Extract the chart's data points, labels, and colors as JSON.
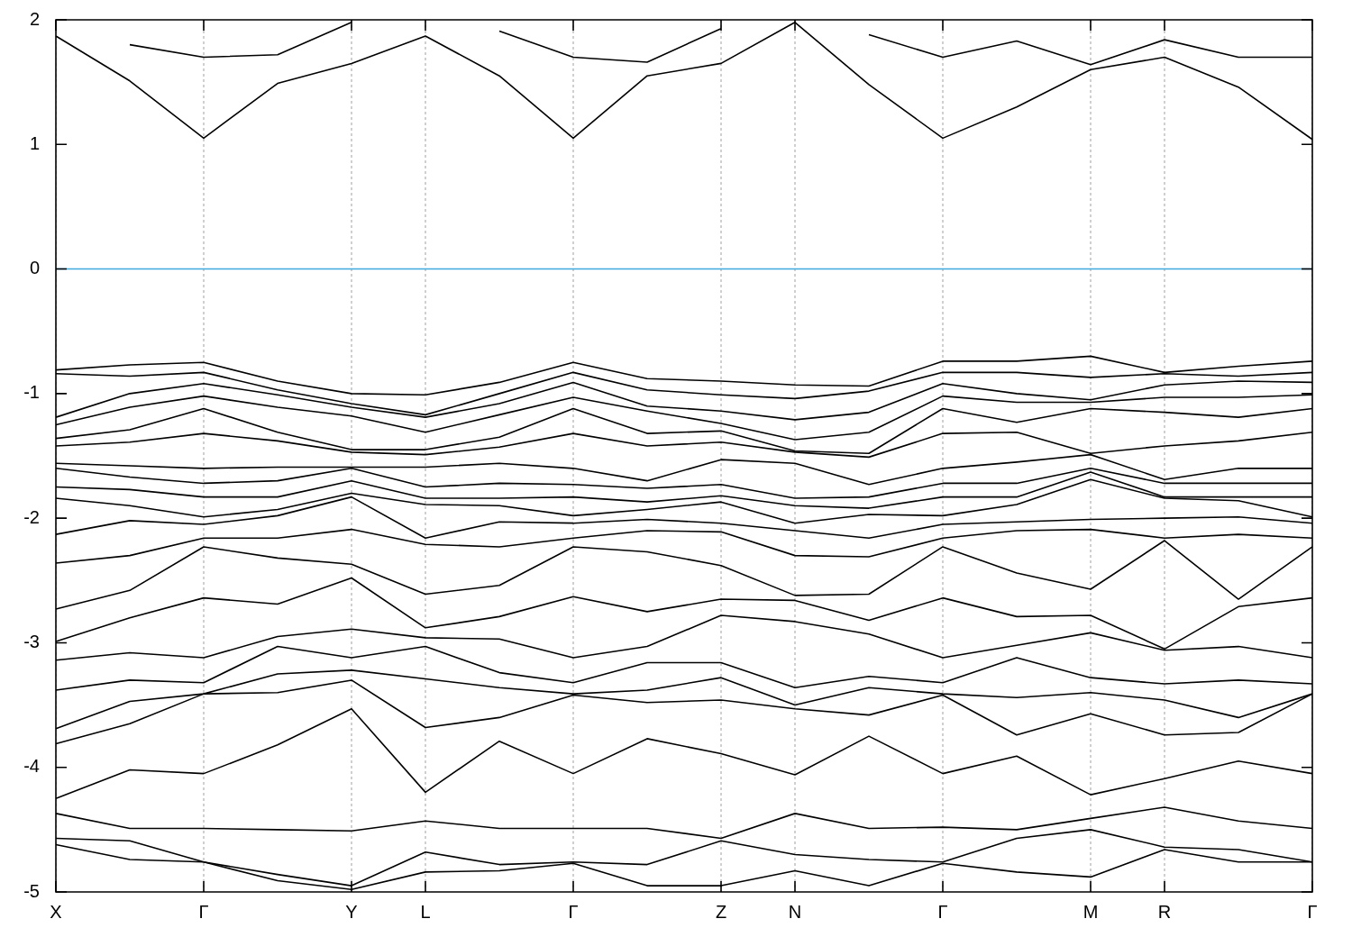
{
  "chart_data": {
    "type": "line",
    "categories": [
      "X",
      null,
      "Γ",
      null,
      "Y",
      "L",
      null,
      "Γ",
      null,
      "Z",
      "N",
      null,
      "Γ",
      null,
      "M",
      "R",
      null,
      "Γ"
    ],
    "ylim": [
      -5,
      2
    ],
    "yticks": [
      -5,
      -4,
      -3,
      -2,
      -1,
      0,
      1,
      2
    ],
    "grid": "x",
    "legend": false,
    "ref_lines": [
      {
        "axis": "y",
        "value": 0,
        "color": "#3fa9dd"
      }
    ],
    "series": [
      {
        "color": "#000000",
        "values": [
          null,
          1.8,
          1.7,
          1.72,
          1.98,
          null,
          1.91,
          1.7,
          1.66,
          1.93,
          null,
          1.88,
          1.7,
          1.83,
          1.64,
          1.84,
          1.7,
          1.7
        ]
      },
      {
        "color": "#000000",
        "values": [
          1.87,
          1.51,
          1.05,
          1.49,
          1.65,
          1.87,
          1.55,
          1.05,
          1.55,
          1.65,
          1.98,
          1.48,
          1.05,
          1.3,
          1.6,
          1.7,
          1.46,
          1.04
        ]
      },
      {
        "color": "#000000",
        "values": [
          -0.81,
          -0.77,
          -0.75,
          -0.9,
          -1.0,
          -1.01,
          -0.91,
          -0.75,
          -0.88,
          -0.9,
          -0.93,
          -0.94,
          -0.74,
          -0.74,
          -0.7,
          -0.83,
          -0.78,
          -0.74
        ]
      },
      {
        "color": "#000000",
        "values": [
          -0.84,
          -0.86,
          -0.83,
          -0.97,
          -1.08,
          -1.17,
          -1.0,
          -0.83,
          -0.97,
          -1.01,
          -1.04,
          -0.98,
          -0.83,
          -0.83,
          -0.87,
          -0.84,
          -0.86,
          -0.83
        ]
      },
      {
        "color": "#000000",
        "values": [
          -1.19,
          -1.0,
          -0.92,
          -1.01,
          -1.11,
          -1.19,
          -1.08,
          -0.91,
          -1.1,
          -1.14,
          -1.21,
          -1.15,
          -0.92,
          -1.0,
          -1.05,
          -0.93,
          -0.9,
          -0.91
        ]
      },
      {
        "color": "#000000",
        "values": [
          -1.25,
          -1.11,
          -1.02,
          -1.11,
          -1.18,
          -1.31,
          -1.17,
          -1.03,
          -1.14,
          -1.24,
          -1.37,
          -1.31,
          -1.02,
          -1.07,
          -1.07,
          -1.03,
          -1.03,
          -1.01
        ]
      },
      {
        "color": "#000000",
        "values": [
          -1.36,
          -1.29,
          -1.12,
          -1.31,
          -1.45,
          -1.45,
          -1.35,
          -1.12,
          -1.32,
          -1.3,
          -1.46,
          -1.48,
          -1.12,
          -1.23,
          -1.12,
          -1.15,
          -1.19,
          -1.12
        ]
      },
      {
        "color": "#000000",
        "values": [
          -1.42,
          -1.39,
          -1.32,
          -1.38,
          -1.47,
          -1.49,
          -1.43,
          -1.32,
          -1.42,
          -1.39,
          -1.47,
          -1.51,
          -1.32,
          -1.31,
          -1.48,
          -1.42,
          -1.38,
          -1.31
        ]
      },
      {
        "color": "#000000",
        "values": [
          -1.56,
          -1.58,
          -1.6,
          -1.59,
          -1.59,
          -1.59,
          -1.56,
          -1.6,
          -1.7,
          -1.53,
          -1.56,
          -1.73,
          -1.6,
          -1.55,
          -1.49,
          -1.69,
          -1.6,
          -1.6
        ]
      },
      {
        "color": "#000000",
        "values": [
          -1.6,
          -1.67,
          -1.72,
          -1.7,
          -1.6,
          -1.75,
          -1.72,
          -1.73,
          -1.76,
          -1.73,
          -1.84,
          -1.83,
          -1.72,
          -1.72,
          -1.6,
          -1.72,
          -1.72,
          -1.72
        ]
      },
      {
        "color": "#000000",
        "values": [
          -1.75,
          -1.77,
          -1.83,
          -1.83,
          -1.7,
          -1.84,
          -1.84,
          -1.83,
          -1.87,
          -1.82,
          -1.9,
          -1.92,
          -1.83,
          -1.83,
          -1.63,
          -1.83,
          -1.83,
          -1.83
        ]
      },
      {
        "color": "#000000",
        "values": [
          -1.84,
          -1.9,
          -1.99,
          -1.93,
          -1.8,
          -1.89,
          -1.9,
          -1.98,
          -1.93,
          -1.87,
          -2.04,
          -1.97,
          -1.98,
          -1.89,
          -1.69,
          -1.84,
          -1.86,
          -1.99
        ]
      },
      {
        "color": "#000000",
        "values": [
          -2.13,
          -2.02,
          -2.05,
          -1.98,
          -1.83,
          -2.16,
          -2.03,
          -2.04,
          -2.01,
          -2.04,
          -2.1,
          -2.16,
          -2.05,
          -2.03,
          -2.01,
          -2.0,
          -1.99,
          -2.04
        ]
      },
      {
        "color": "#000000",
        "values": [
          -2.36,
          -2.3,
          -2.16,
          -2.16,
          -2.09,
          -2.21,
          -2.23,
          -2.16,
          -2.1,
          -2.11,
          -2.3,
          -2.31,
          -2.16,
          -2.1,
          -2.09,
          -2.16,
          -2.13,
          -2.16
        ]
      },
      {
        "color": "#000000",
        "values": [
          -2.73,
          -2.58,
          -2.23,
          -2.32,
          -2.37,
          -2.61,
          -2.54,
          -2.23,
          -2.27,
          -2.38,
          -2.62,
          -2.61,
          -2.23,
          -2.44,
          -2.57,
          -2.18,
          -2.65,
          -2.23
        ]
      },
      {
        "color": "#000000",
        "values": [
          -2.99,
          -2.8,
          -2.64,
          -2.69,
          -2.48,
          -2.88,
          -2.79,
          -2.63,
          -2.75,
          -2.65,
          -2.66,
          -2.82,
          -2.64,
          -2.79,
          -2.78,
          -3.05,
          -2.71,
          -2.64
        ]
      },
      {
        "color": "#000000",
        "values": [
          -3.14,
          -3.08,
          -3.12,
          -2.95,
          -2.89,
          -2.96,
          -2.97,
          -3.12,
          -3.03,
          -2.78,
          -2.83,
          -2.93,
          -3.12,
          -3.02,
          -2.92,
          -3.06,
          -3.03,
          -3.12
        ]
      },
      {
        "color": "#000000",
        "values": [
          -3.38,
          -3.3,
          -3.32,
          -3.03,
          -3.12,
          -3.03,
          -3.24,
          -3.32,
          -3.16,
          -3.16,
          -3.36,
          -3.27,
          -3.32,
          -3.12,
          -3.28,
          -3.33,
          -3.3,
          -3.33
        ]
      },
      {
        "color": "#000000",
        "values": [
          -3.69,
          -3.47,
          -3.41,
          -3.25,
          -3.22,
          -3.29,
          -3.36,
          -3.41,
          -3.38,
          -3.28,
          -3.5,
          -3.36,
          -3.41,
          -3.44,
          -3.4,
          -3.46,
          -3.6,
          -3.41
        ]
      },
      {
        "color": "#000000",
        "values": [
          -3.81,
          -3.65,
          -3.41,
          -3.4,
          -3.3,
          -3.68,
          -3.6,
          -3.42,
          -3.48,
          -3.46,
          -3.53,
          -3.58,
          -3.42,
          -3.74,
          -3.57,
          -3.74,
          -3.72,
          -3.41
        ]
      },
      {
        "color": "#000000",
        "values": [
          -4.25,
          -4.02,
          -4.05,
          -3.82,
          -3.53,
          -4.2,
          -3.79,
          -4.05,
          -3.77,
          -3.89,
          -4.06,
          -3.75,
          -4.05,
          -3.91,
          -4.22,
          -4.09,
          -3.95,
          -4.05
        ]
      },
      {
        "color": "#000000",
        "values": [
          -4.37,
          -4.49,
          -4.49,
          -4.5,
          -4.51,
          -4.43,
          -4.49,
          -4.49,
          -4.49,
          -4.57,
          -4.37,
          -4.49,
          -4.48,
          -4.5,
          -4.41,
          -4.32,
          -4.43,
          -4.49
        ]
      },
      {
        "color": "#000000",
        "values": [
          -4.57,
          -4.59,
          -4.76,
          -4.86,
          -4.95,
          -4.68,
          -4.78,
          -4.76,
          -4.78,
          -4.59,
          -4.7,
          -4.74,
          -4.76,
          -4.57,
          -4.5,
          -4.64,
          -4.66,
          -4.76
        ]
      },
      {
        "color": "#000000",
        "values": [
          -4.62,
          -4.74,
          -4.76,
          -4.91,
          -4.98,
          -4.84,
          -4.83,
          -4.77,
          -4.95,
          -4.95,
          -4.83,
          -4.95,
          -4.77,
          -4.84,
          -4.88,
          -4.66,
          -4.76,
          -4.76
        ]
      }
    ]
  }
}
